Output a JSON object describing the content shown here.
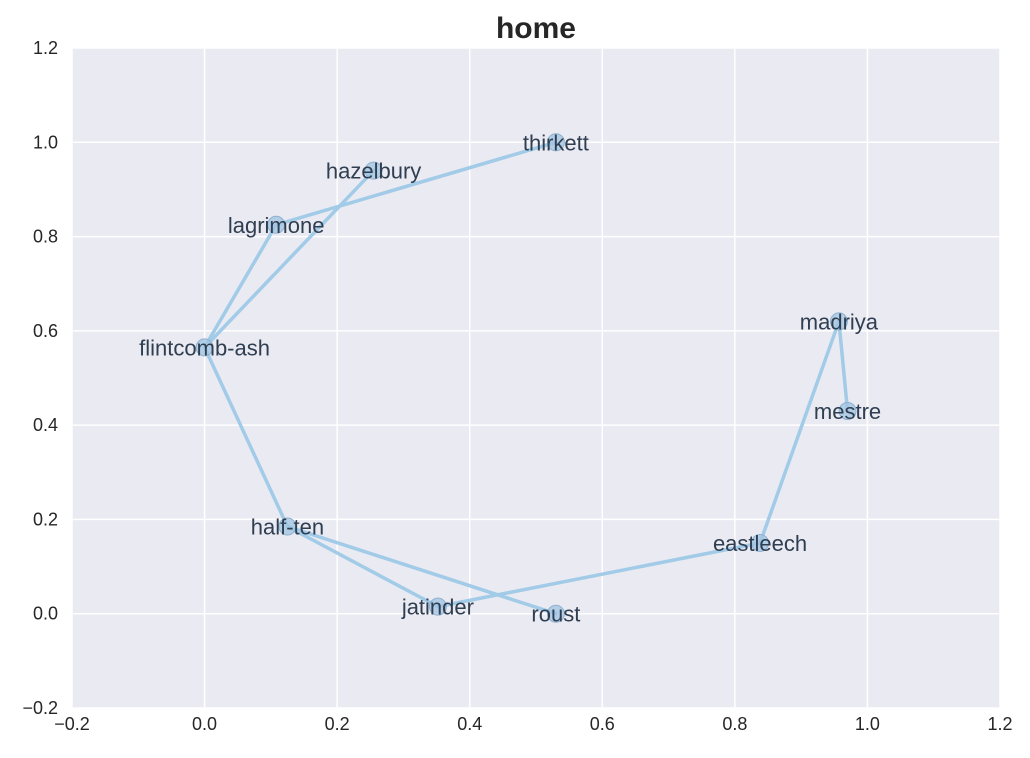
{
  "chart_data": {
    "type": "scatter",
    "title": "home",
    "xlabel": "",
    "ylabel": "",
    "xlim": [
      -0.2,
      1.2
    ],
    "ylim": [
      -0.2,
      1.2
    ],
    "xticks": [
      "−0.2",
      "0.0",
      "0.2",
      "0.4",
      "0.6",
      "0.8",
      "1.0",
      "1.2"
    ],
    "yticks": [
      "−0.2",
      "0.0",
      "0.2",
      "0.4",
      "0.6",
      "0.8",
      "1.0",
      "1.2"
    ],
    "grid": true,
    "background_color": "#EAEAF2",
    "edge_color": "#A2CBE8",
    "node_color": "#9FC4E3",
    "nodes": [
      {
        "label": "thirkett",
        "x": 0.53,
        "y": 1.0
      },
      {
        "label": "hazelbury",
        "x": 0.255,
        "y": 0.94
      },
      {
        "label": "lagrimone",
        "x": 0.108,
        "y": 0.825
      },
      {
        "label": "flintcomb-ash",
        "x": 0.0,
        "y": 0.565
      },
      {
        "label": "half-ten",
        "x": 0.125,
        "y": 0.185
      },
      {
        "label": "jatinder",
        "x": 0.352,
        "y": 0.015
      },
      {
        "label": "roust",
        "x": 0.53,
        "y": 0.0
      },
      {
        "label": "eastleech",
        "x": 0.838,
        "y": 0.15
      },
      {
        "label": "madriya",
        "x": 0.957,
        "y": 0.62
      },
      {
        "label": "mestre",
        "x": 0.97,
        "y": 0.43
      }
    ],
    "edges": [
      [
        "thirkett",
        "lagrimone"
      ],
      [
        "lagrimone",
        "flintcomb-ash"
      ],
      [
        "flintcomb-ash",
        "hazelbury"
      ],
      [
        "flintcomb-ash",
        "half-ten"
      ],
      [
        "half-ten",
        "roust"
      ],
      [
        "half-ten",
        "jatinder"
      ],
      [
        "jatinder",
        "eastleech"
      ],
      [
        "eastleech",
        "madriya"
      ],
      [
        "madriya",
        "mestre"
      ]
    ]
  }
}
